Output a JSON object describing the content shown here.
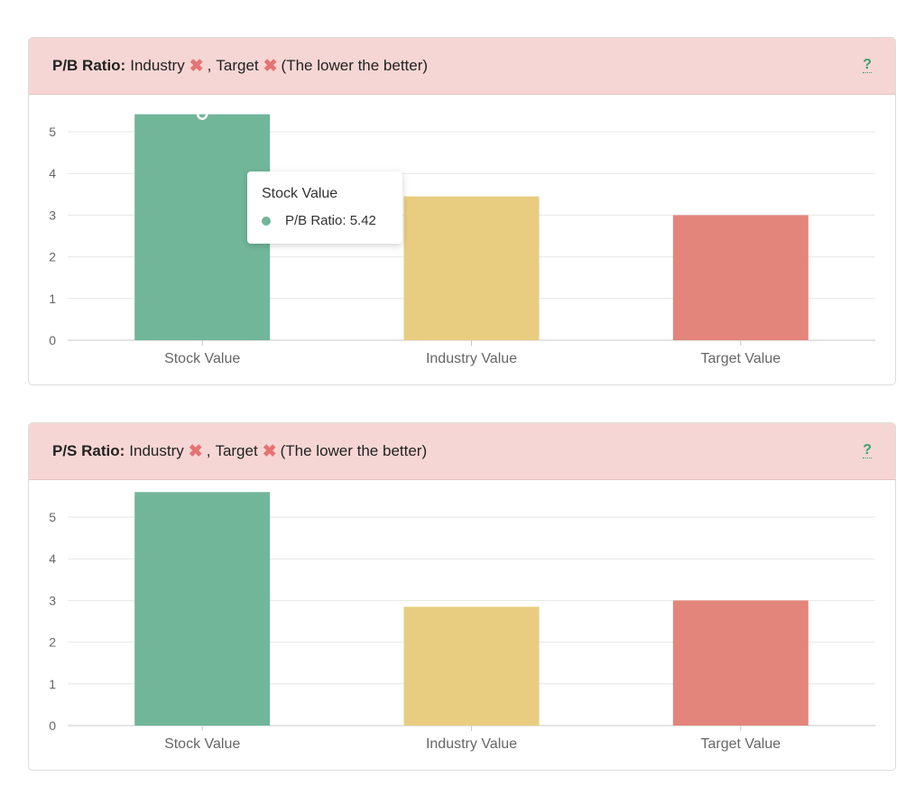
{
  "cards": [
    {
      "metric_label": "P/B Ratio:",
      "industry_label": "Industry",
      "separator": ",",
      "target_label": "Target",
      "note": "(The lower the better)",
      "help": "?",
      "status_icon": "x-icon",
      "help_icon": "question-mark-icon"
    },
    {
      "metric_label": "P/S Ratio:",
      "industry_label": "Industry",
      "separator": ",",
      "target_label": "Target",
      "note": "(The lower the better)",
      "help": "?",
      "status_icon": "x-icon",
      "help_icon": "question-mark-icon"
    }
  ],
  "tooltip": {
    "title": "Stock Value",
    "label": "P/B Ratio: 5.42"
  },
  "colors": {
    "stock": "#72b69a",
    "industry": "#e8cd80",
    "target": "#e3857b",
    "status_fail": "#e57373",
    "help": "#3aa06e",
    "header_bg": "#f6d6d4"
  },
  "chart_data": [
    {
      "type": "bar",
      "categories": [
        "Stock Value",
        "Industry Value",
        "Target Value"
      ],
      "series": [
        {
          "name": "P/B Ratio",
          "values": [
            5.42,
            3.45,
            3.0
          ]
        }
      ],
      "ylim": [
        0,
        5.5
      ],
      "yticks": [
        0,
        1,
        2,
        3,
        4,
        5
      ],
      "grid": true,
      "legend": "none"
    },
    {
      "type": "bar",
      "categories": [
        "Stock Value",
        "Industry Value",
        "Target Value"
      ],
      "series": [
        {
          "values": [
            5.6,
            2.85,
            3.0
          ]
        }
      ],
      "ylim": [
        0,
        5.5
      ],
      "yticks": [
        0,
        1,
        2,
        3,
        4,
        5
      ],
      "grid": true,
      "legend": "none"
    }
  ]
}
